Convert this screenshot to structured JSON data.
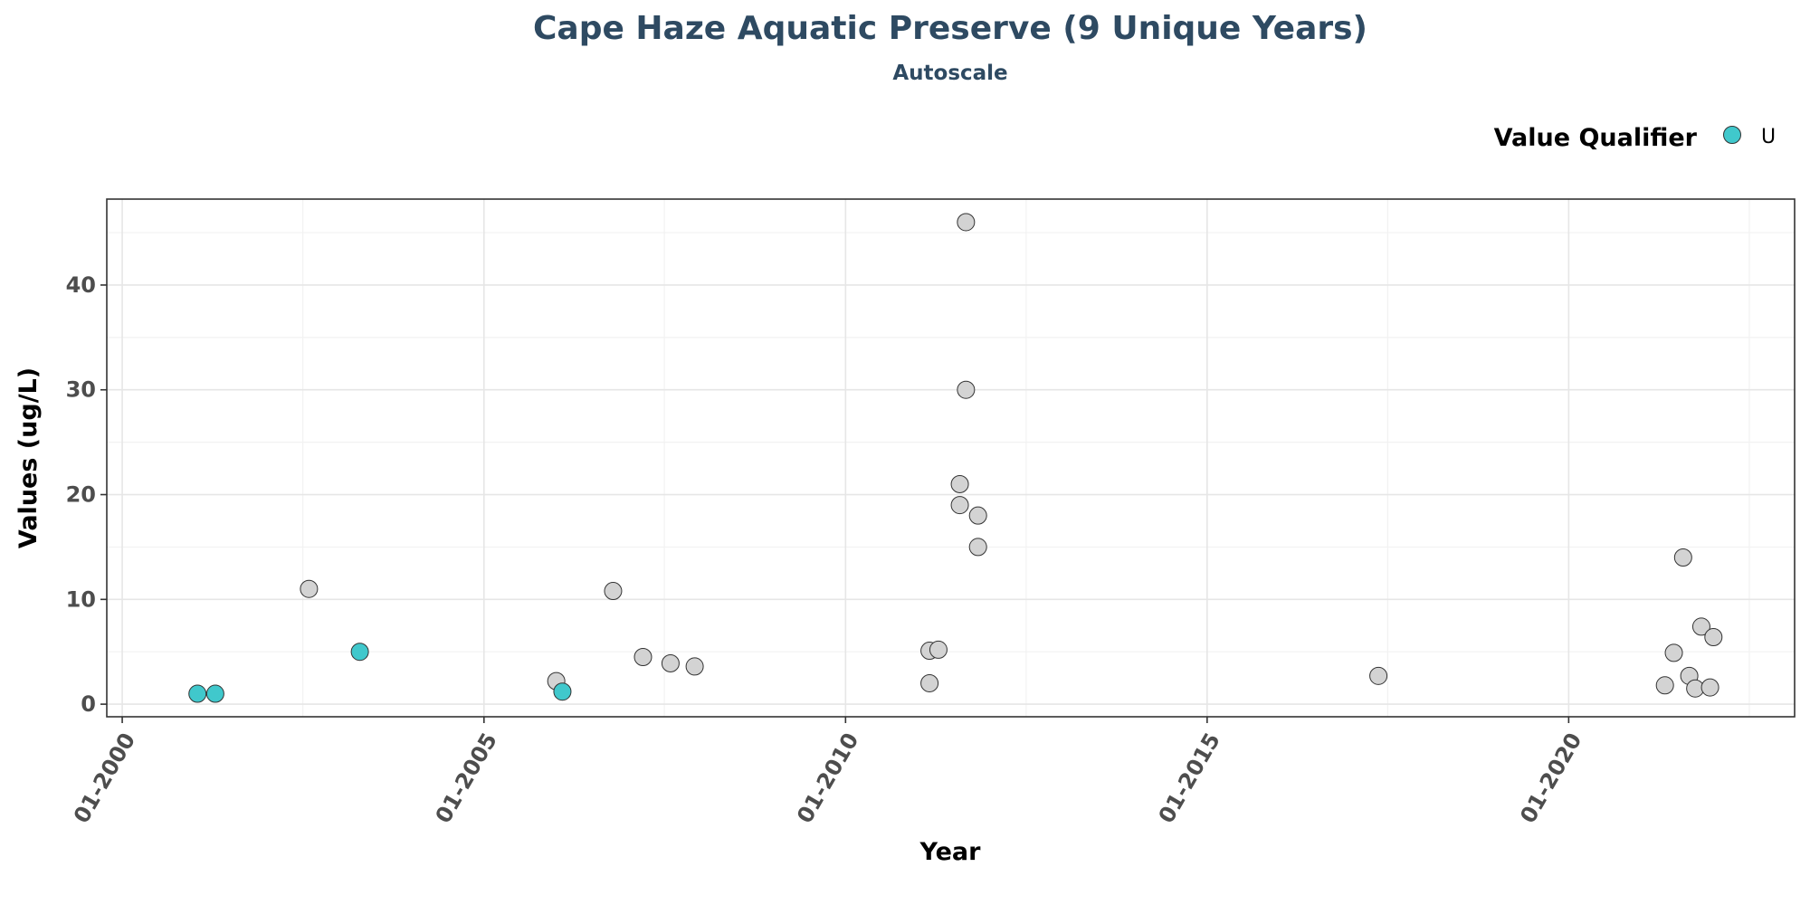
{
  "chart_data": {
    "type": "scatter",
    "title": "Cape Haze Aquatic Preserve (9 Unique Years)",
    "subtitle": "Autoscale",
    "xlabel": "Year",
    "ylabel": "Values (ug/L)",
    "x_type": "date",
    "xlim": [
      "1999-10-15",
      "2023-02-15"
    ],
    "ylim": [
      -1.2,
      48.2
    ],
    "x_ticks": [
      {
        "date": "2000-01-01",
        "label": "01-2000"
      },
      {
        "date": "2005-01-01",
        "label": "01-2005"
      },
      {
        "date": "2010-01-01",
        "label": "01-2010"
      },
      {
        "date": "2015-01-01",
        "label": "01-2015"
      },
      {
        "date": "2020-01-01",
        "label": "01-2020"
      }
    ],
    "x_minor_ticks": [
      "2002-07-01",
      "2007-07-01",
      "2012-07-01",
      "2017-07-01",
      "2022-07-01"
    ],
    "y_ticks": [
      0,
      10,
      20,
      30,
      40
    ],
    "y_minor_ticks": [
      5,
      15,
      25,
      35,
      45
    ],
    "grid": true,
    "legend": {
      "title": "Value Qualifier",
      "position": "top-right",
      "entries": [
        {
          "label": "U",
          "color": "#40c8cc"
        }
      ]
    },
    "colors": {
      "qualified": "#40c8cc",
      "unqualified": "#d3d3d3",
      "title": "#2e4a62"
    },
    "points": [
      {
        "date": "2001-01-15",
        "value": 1.0,
        "qualifier": "U"
      },
      {
        "date": "2001-04-15",
        "value": 1.0,
        "qualifier": "U"
      },
      {
        "date": "2002-08-01",
        "value": 11.0,
        "qualifier": ""
      },
      {
        "date": "2003-04-15",
        "value": 5.0,
        "qualifier": "U"
      },
      {
        "date": "2006-01-01",
        "value": 2.2,
        "qualifier": ""
      },
      {
        "date": "2006-02-01",
        "value": 1.2,
        "qualifier": "U"
      },
      {
        "date": "2006-10-15",
        "value": 10.8,
        "qualifier": ""
      },
      {
        "date": "2007-03-15",
        "value": 4.5,
        "qualifier": ""
      },
      {
        "date": "2007-08-01",
        "value": 3.9,
        "qualifier": ""
      },
      {
        "date": "2007-12-01",
        "value": 3.6,
        "qualifier": ""
      },
      {
        "date": "2011-03-01",
        "value": 2.0,
        "qualifier": ""
      },
      {
        "date": "2011-03-01",
        "value": 5.1,
        "qualifier": ""
      },
      {
        "date": "2011-04-15",
        "value": 5.2,
        "qualifier": ""
      },
      {
        "date": "2011-08-01",
        "value": 21.0,
        "qualifier": ""
      },
      {
        "date": "2011-08-01",
        "value": 19.0,
        "qualifier": ""
      },
      {
        "date": "2011-09-01",
        "value": 46.0,
        "qualifier": ""
      },
      {
        "date": "2011-09-01",
        "value": 30.0,
        "qualifier": ""
      },
      {
        "date": "2011-11-01",
        "value": 18.0,
        "qualifier": ""
      },
      {
        "date": "2011-11-01",
        "value": 15.0,
        "qualifier": ""
      },
      {
        "date": "2017-05-15",
        "value": 2.7,
        "qualifier": ""
      },
      {
        "date": "2021-05-01",
        "value": 1.8,
        "qualifier": ""
      },
      {
        "date": "2021-06-15",
        "value": 4.9,
        "qualifier": ""
      },
      {
        "date": "2021-08-01",
        "value": 14.0,
        "qualifier": ""
      },
      {
        "date": "2021-09-01",
        "value": 2.7,
        "qualifier": ""
      },
      {
        "date": "2021-10-01",
        "value": 1.5,
        "qualifier": ""
      },
      {
        "date": "2021-11-01",
        "value": 7.4,
        "qualifier": ""
      },
      {
        "date": "2021-12-15",
        "value": 1.6,
        "qualifier": ""
      },
      {
        "date": "2022-01-01",
        "value": 6.4,
        "qualifier": ""
      }
    ]
  }
}
